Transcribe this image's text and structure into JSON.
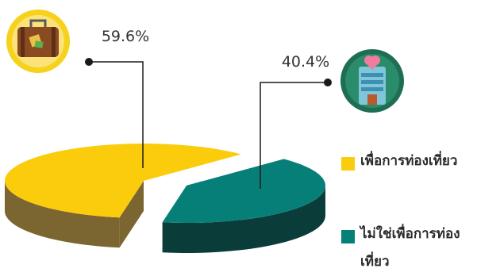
{
  "chart_data": {
    "type": "pie",
    "title": "",
    "labels": [
      "เพื่อการท่องเที่ยว",
      "ไม่ใช่เพื่อการท่องเที่ยว"
    ],
    "values": [
      59.6,
      40.4
    ],
    "value_labels": [
      "59.6%",
      "40.4%"
    ],
    "colors": [
      "#fbcc0b",
      "#067f78"
    ],
    "side_colors": [
      "#7b6530",
      "#0a3d3a"
    ],
    "three_d": true,
    "exploded": true,
    "legend_position": "right"
  },
  "legend": [
    {
      "label": "เพื่อการท่องเที่ยว",
      "color": "#fbcc0b"
    },
    {
      "label": "ไม่ใช่เพื่อการท่องเที่ยว",
      "color": "#067f78"
    }
  ],
  "icons": {
    "travel": "suitcase-icon",
    "non_travel": "hospital-building-icon"
  },
  "icon_colors": {
    "travel_ring": "#f6d21c",
    "non_travel_ring": "#1d6e53"
  }
}
